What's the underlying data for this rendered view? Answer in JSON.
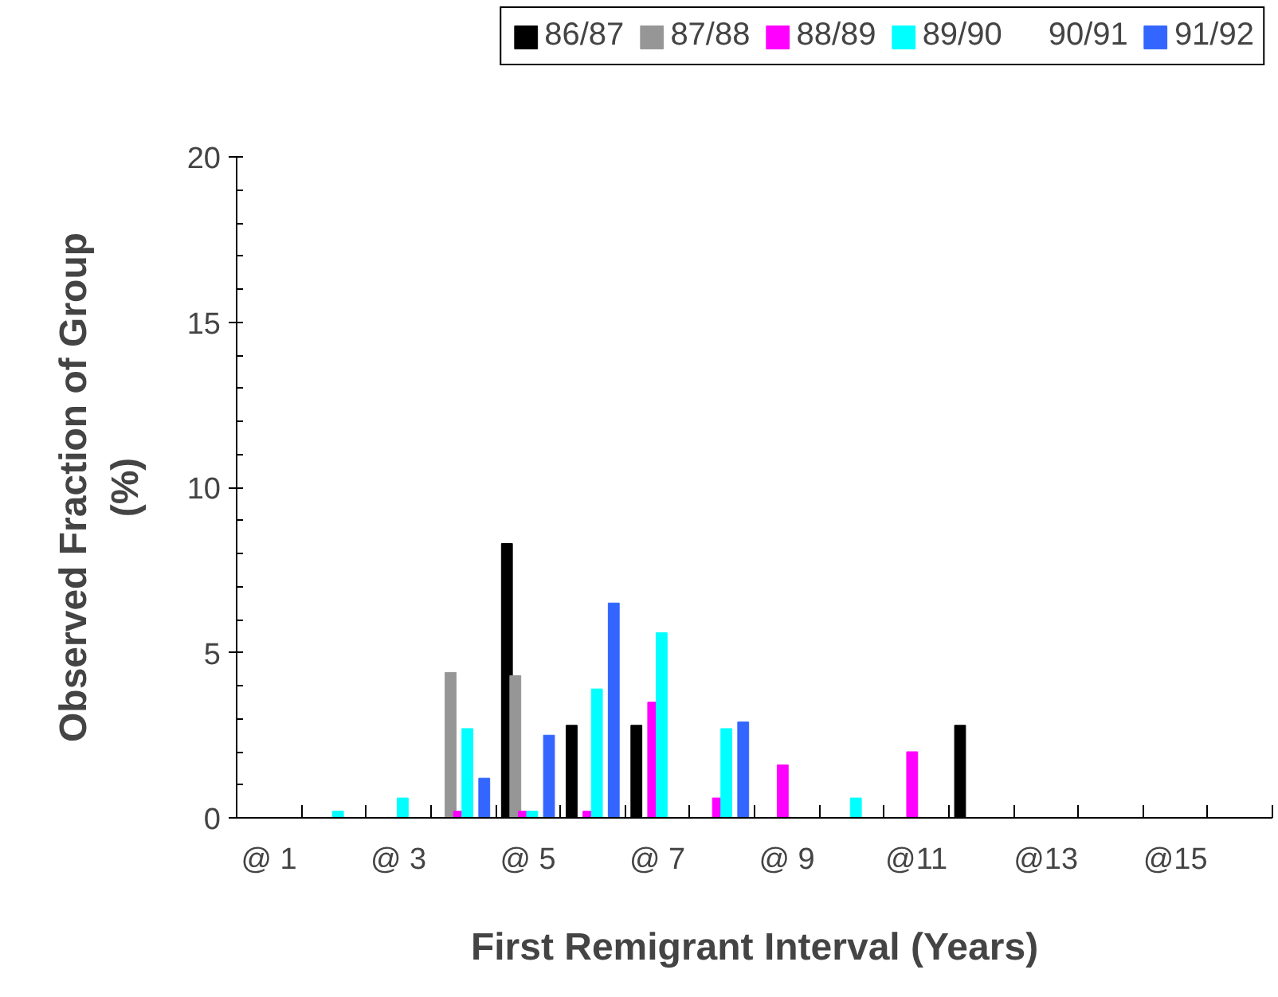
{
  "chart_data": {
    "type": "bar",
    "xlabel": "First Remigrant Interval (Years)",
    "ylabel": "Observed Fraction of Group (%)",
    "categories": [
      "@ 1",
      null,
      "@ 3",
      null,
      "@ 5",
      null,
      "@ 7",
      null,
      "@ 9",
      null,
      "@11",
      null,
      "@13",
      null,
      "@15",
      null
    ],
    "series": [
      {
        "name": "86/87",
        "color": "#000000",
        "values": [
          null,
          null,
          null,
          null,
          8.3,
          2.8,
          2.8,
          null,
          null,
          null,
          null,
          2.8,
          null,
          null,
          null,
          null
        ]
      },
      {
        "name": "87/88",
        "color": "#969696",
        "values": [
          null,
          null,
          null,
          4.4,
          4.3,
          null,
          null,
          null,
          null,
          null,
          null,
          null,
          null,
          null,
          null,
          null
        ]
      },
      {
        "name": "88/89",
        "color": "#ff00ff",
        "values": [
          null,
          null,
          null,
          0.2,
          0.2,
          0.2,
          3.5,
          0.6,
          1.6,
          null,
          2.0,
          null,
          null,
          null,
          null,
          null
        ]
      },
      {
        "name": "89/90",
        "color": "#00ffff",
        "values": [
          null,
          0.2,
          0.6,
          2.7,
          0.2,
          3.9,
          5.6,
          2.7,
          null,
          0.6,
          null,
          null,
          null,
          null,
          null,
          null
        ]
      },
      {
        "name": "90/91",
        "values": [
          null,
          null,
          null,
          null,
          null,
          null,
          null,
          null,
          null,
          null,
          null,
          null,
          null,
          null,
          null,
          null
        ]
      },
      {
        "name": "91/92",
        "color": "#3366ff",
        "values": [
          null,
          null,
          null,
          1.2,
          2.5,
          6.5,
          null,
          2.9,
          null,
          null,
          null,
          null,
          null,
          null,
          null,
          null
        ]
      }
    ],
    "ylim": [
      0,
      20
    ],
    "yticks": [
      0,
      5,
      10,
      15,
      20
    ],
    "grid": false,
    "legend": "top"
  }
}
